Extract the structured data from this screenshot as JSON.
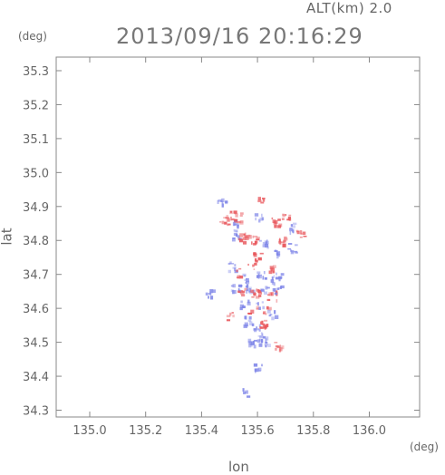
{
  "header": {
    "altitude_label": "ALT(km) 2.0",
    "timestamp": "2013/09/16 20:16:29",
    "y_unit": "(deg)",
    "x_unit": "(deg)"
  },
  "colors": {
    "positive": "#e8555a",
    "negative": "#7f86e8",
    "frame": "#888888"
  },
  "chart_data": {
    "type": "heatmap",
    "title": "",
    "xlabel": "lon",
    "ylabel": "lat",
    "xlim": [
      134.88,
      136.18
    ],
    "ylim": [
      34.28,
      35.34
    ],
    "x_ticks": [
      135.0,
      135.2,
      135.4,
      135.6,
      135.8,
      136.0
    ],
    "x_tick_labels": [
      "135.0",
      "135.2",
      "135.4",
      "135.6",
      "135.8",
      "136.0"
    ],
    "y_ticks": [
      34.3,
      34.4,
      34.5,
      34.6,
      34.7,
      34.8,
      34.9,
      35.0,
      35.1,
      35.2,
      35.3
    ],
    "y_tick_labels": [
      "34.3",
      "34.4",
      "34.5",
      "34.6",
      "34.7",
      "34.8",
      "34.9",
      "35.0",
      "35.1",
      "35.2",
      "35.3"
    ],
    "grid": false,
    "echoes": [
      {
        "lon": 135.61,
        "lat": 34.925,
        "sign": "positive"
      },
      {
        "lon": 135.47,
        "lat": 34.915,
        "sign": "negative"
      },
      {
        "lon": 135.48,
        "lat": 34.86,
        "sign": "positive"
      },
      {
        "lon": 135.5,
        "lat": 34.875,
        "sign": "positive"
      },
      {
        "lon": 135.51,
        "lat": 34.85,
        "sign": "negative"
      },
      {
        "lon": 135.53,
        "lat": 34.87,
        "sign": "positive"
      },
      {
        "lon": 135.52,
        "lat": 34.82,
        "sign": "negative"
      },
      {
        "lon": 135.54,
        "lat": 34.81,
        "sign": "positive"
      },
      {
        "lon": 135.6,
        "lat": 34.87,
        "sign": "negative"
      },
      {
        "lon": 135.58,
        "lat": 34.805,
        "sign": "positive"
      },
      {
        "lon": 135.62,
        "lat": 34.79,
        "sign": "negative"
      },
      {
        "lon": 135.66,
        "lat": 34.855,
        "sign": "positive"
      },
      {
        "lon": 135.7,
        "lat": 34.87,
        "sign": "positive"
      },
      {
        "lon": 135.71,
        "lat": 34.84,
        "sign": "negative"
      },
      {
        "lon": 135.69,
        "lat": 34.8,
        "sign": "positive"
      },
      {
        "lon": 135.72,
        "lat": 34.78,
        "sign": "negative"
      },
      {
        "lon": 135.75,
        "lat": 34.82,
        "sign": "positive"
      },
      {
        "lon": 135.66,
        "lat": 34.77,
        "sign": "negative"
      },
      {
        "lon": 135.6,
        "lat": 34.76,
        "sign": "positive"
      },
      {
        "lon": 135.51,
        "lat": 34.725,
        "sign": "negative"
      },
      {
        "lon": 135.53,
        "lat": 34.705,
        "sign": "positive"
      },
      {
        "lon": 135.55,
        "lat": 34.69,
        "sign": "negative"
      },
      {
        "lon": 135.58,
        "lat": 34.73,
        "sign": "positive"
      },
      {
        "lon": 135.61,
        "lat": 34.7,
        "sign": "negative"
      },
      {
        "lon": 135.64,
        "lat": 34.715,
        "sign": "positive"
      },
      {
        "lon": 135.66,
        "lat": 34.69,
        "sign": "negative"
      },
      {
        "lon": 135.68,
        "lat": 34.705,
        "sign": "negative"
      },
      {
        "lon": 135.52,
        "lat": 34.66,
        "sign": "negative"
      },
      {
        "lon": 135.54,
        "lat": 34.65,
        "sign": "positive"
      },
      {
        "lon": 135.57,
        "lat": 34.665,
        "sign": "negative"
      },
      {
        "lon": 135.59,
        "lat": 34.645,
        "sign": "positive"
      },
      {
        "lon": 135.62,
        "lat": 34.66,
        "sign": "negative"
      },
      {
        "lon": 135.65,
        "lat": 34.64,
        "sign": "positive"
      },
      {
        "lon": 135.67,
        "lat": 34.655,
        "sign": "negative"
      },
      {
        "lon": 135.55,
        "lat": 34.615,
        "sign": "negative"
      },
      {
        "lon": 135.58,
        "lat": 34.6,
        "sign": "positive"
      },
      {
        "lon": 135.61,
        "lat": 34.61,
        "sign": "negative"
      },
      {
        "lon": 135.63,
        "lat": 34.595,
        "sign": "positive"
      },
      {
        "lon": 135.65,
        "lat": 34.585,
        "sign": "negative"
      },
      {
        "lon": 135.5,
        "lat": 34.58,
        "sign": "positive"
      },
      {
        "lon": 135.56,
        "lat": 34.565,
        "sign": "negative"
      },
      {
        "lon": 135.59,
        "lat": 34.55,
        "sign": "negative"
      },
      {
        "lon": 135.62,
        "lat": 34.555,
        "sign": "positive"
      },
      {
        "lon": 135.6,
        "lat": 34.52,
        "sign": "negative"
      },
      {
        "lon": 135.62,
        "lat": 34.505,
        "sign": "negative"
      },
      {
        "lon": 135.58,
        "lat": 34.5,
        "sign": "negative"
      },
      {
        "lon": 135.67,
        "lat": 34.49,
        "sign": "positive"
      },
      {
        "lon": 135.43,
        "lat": 34.65,
        "sign": "negative"
      },
      {
        "lon": 135.6,
        "lat": 34.43,
        "sign": "negative"
      },
      {
        "lon": 135.56,
        "lat": 34.355,
        "sign": "negative"
      }
    ]
  }
}
